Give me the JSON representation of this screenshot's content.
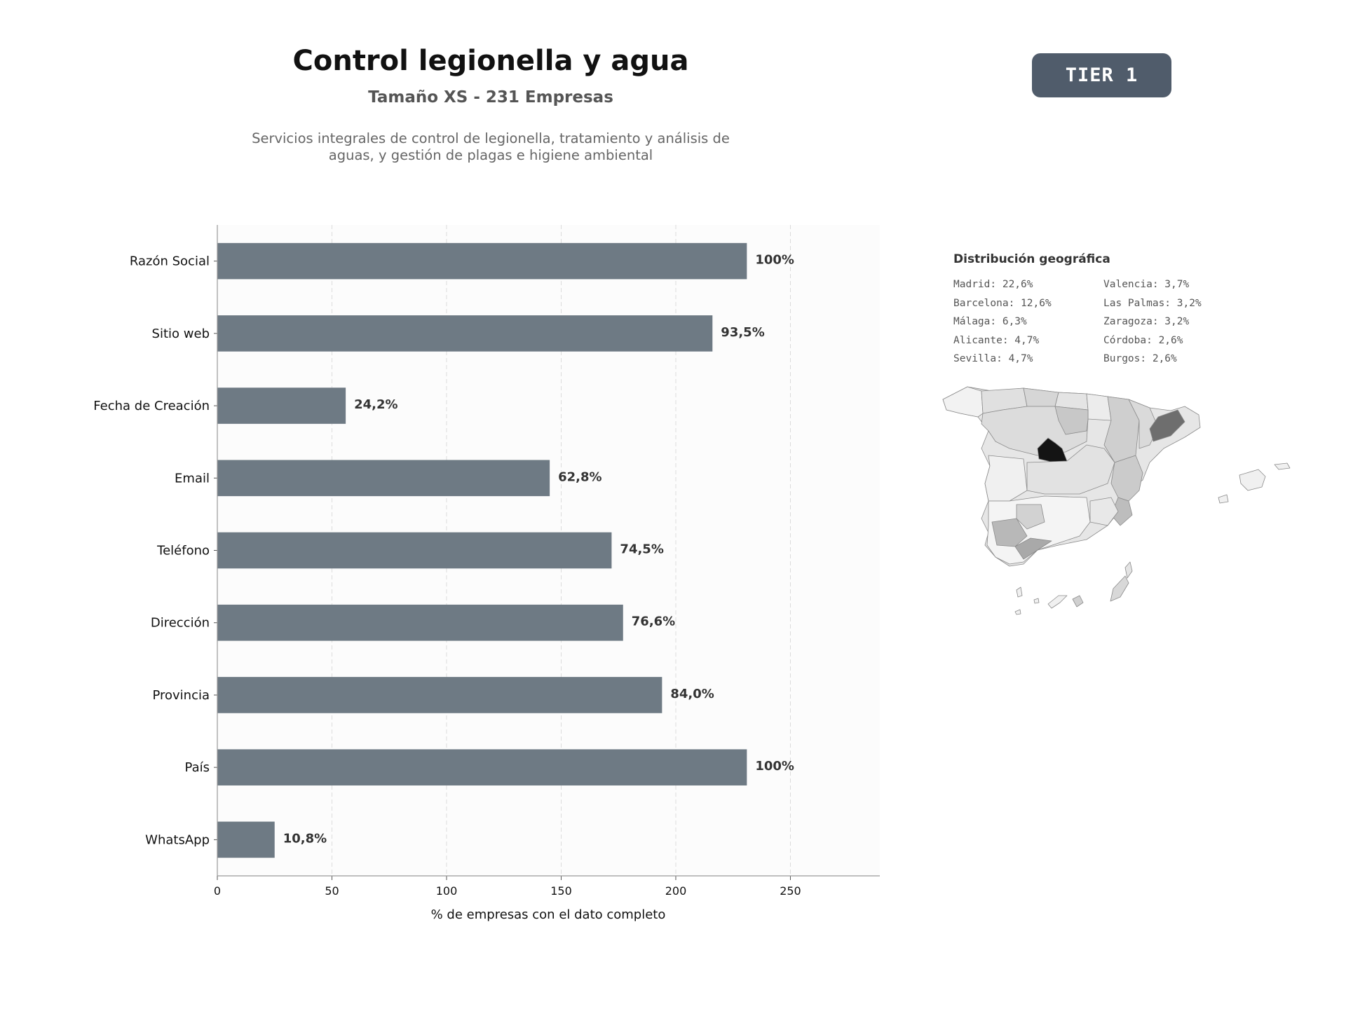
{
  "header": {
    "title": "Control legionella y agua",
    "subtitle": "Tamaño XS - 231 Empresas",
    "description": "Servicios integrales de control de legionella, tratamiento y análisis de aguas, y gestión de plagas e higiene ambiental",
    "tier_badge": "TIER 1"
  },
  "chart_data": {
    "type": "bar",
    "orientation": "horizontal",
    "categories": [
      "Razón Social",
      "Sitio web",
      "Fecha de Creación",
      "Email",
      "Teléfono",
      "Dirección",
      "Provincia",
      "País",
      "WhatsApp"
    ],
    "values": [
      231,
      216,
      56,
      145,
      172,
      177,
      194,
      231,
      25
    ],
    "data_labels": [
      "100%",
      "93,5%",
      "24,2%",
      "62,8%",
      "74,5%",
      "76,6%",
      "84,0%",
      "100%",
      "10,8%"
    ],
    "xlabel": "% de empresas con el dato completo",
    "ylabel": "",
    "xlim": [
      0,
      289
    ],
    "xticks": [
      0,
      50,
      100,
      150,
      200,
      250
    ],
    "grid": "vertical dashed",
    "bar_color": "#6e7a84"
  },
  "geo": {
    "title": "Distribución geográfica",
    "items": [
      "Madrid: 22,6%",
      "Valencia: 3,7%",
      "Barcelona: 12,6%",
      "Las Palmas: 3,2%",
      "Málaga: 6,3%",
      "Zaragoza: 3,2%",
      "Alicante: 4,7%",
      "Córdoba: 2,6%",
      "Sevilla: 4,7%",
      "Burgos: 2,6%"
    ]
  }
}
